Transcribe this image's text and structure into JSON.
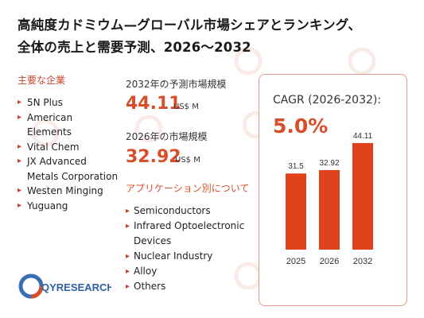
{
  "title_line1": "高純度カドミウム—グローバル市場シェアとランキング、",
  "title_line2": "全体の売上と需要予測、2026～2032",
  "companies_heading": "主要な企業",
  "companies": [
    "5N Plus",
    "American Elements",
    "Vital Chem",
    "JX Advanced Metals Corporation",
    "Westen Minging",
    "Yuguang"
  ],
  "metric_2032_label": "2032年の予測市場規模",
  "metric_2032_value": "44.11",
  "metric_2032_unit": "US$ M",
  "metric_2026_label": "2026年の市場規模",
  "metric_2026_value": "32.92",
  "metric_2026_unit": "US$ M",
  "applications_heading": "アプリケーション別について",
  "applications": [
    "Semiconductors",
    "Infrared Optoelectronic Devices",
    "Nuclear Industry",
    "Alloy",
    "Others"
  ],
  "cagr_label": "CAGR (2026-2032):",
  "cagr_value": "5.0%",
  "logo_text": "QYRESEARCH",
  "colors": {
    "accent": "#d94e2a",
    "bar": "#e0421b",
    "card_border": "#e29a8a"
  },
  "chart_data": {
    "type": "bar",
    "categories": [
      "2025",
      "2026",
      "2032"
    ],
    "values": [
      31.5,
      32.92,
      44.11
    ],
    "data_labels": [
      "31.5",
      "32.92",
      "44.11"
    ],
    "title": "",
    "xlabel": "",
    "ylabel": "",
    "ylim": [
      0,
      50
    ],
    "grid": false,
    "axis_shown": false
  }
}
